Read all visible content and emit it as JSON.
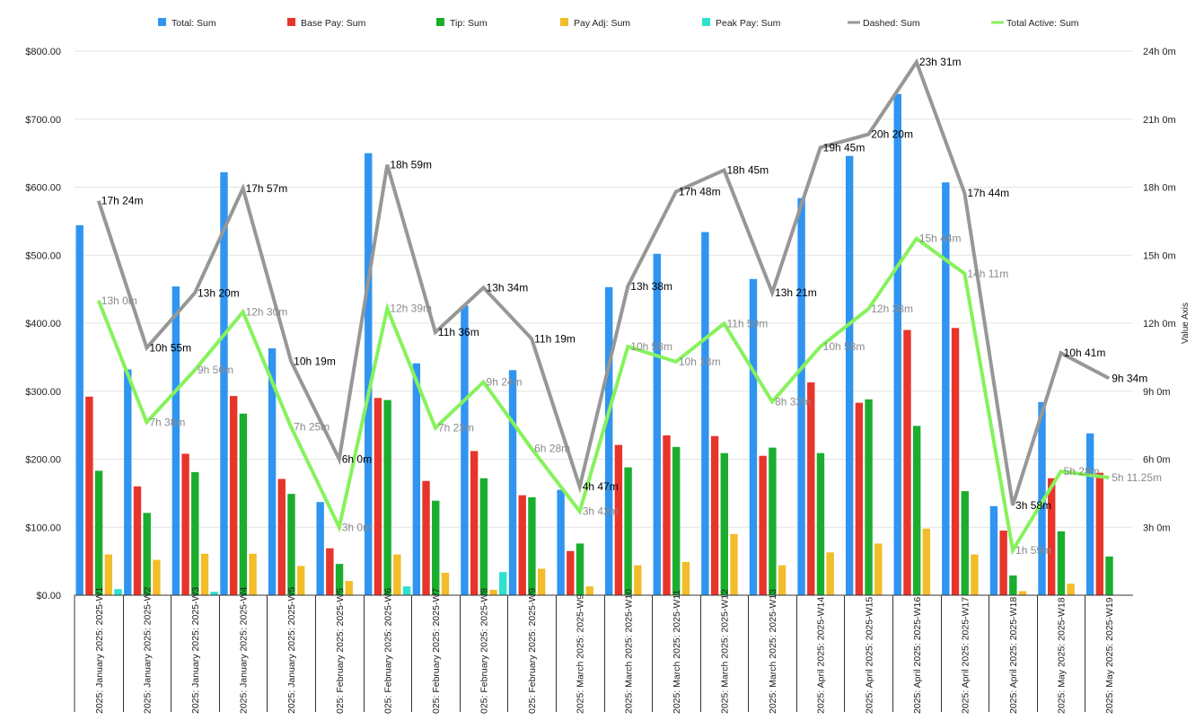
{
  "chart_data": {
    "type": "bar",
    "categories": [
      "2025: January 2025: 2025-W1",
      "2025: January 2025: 2025-W2",
      "2025: January 2025: 2025-W3",
      "2025: January 2025: 2025-W4",
      "2025: January 2025: 2025-W5",
      "025: February 2025: 2025-W5",
      "025: February 2025: 2025-W6",
      "025: February 2025: 2025-W7",
      "025: February 2025: 2025-W8",
      "025: February 2025: 2025-W9",
      "2025: March 2025: 2025-W9",
      "2025: March 2025: 2025-W10",
      "2025: March 2025: 2025-W11",
      "2025: March 2025: 2025-W12",
      "2025: March 2025: 2025-W13",
      "2025: April 2025: 2025-W14",
      "2025: April 2025: 2025-W15",
      "2025: April 2025: 2025-W16",
      "2025: April 2025: 2025-W17",
      "2025: April 2025: 2025-W18",
      "2025: May 2025: 2025-W18",
      "2025: May 2025: 2025-W19"
    ],
    "bar_series": [
      {
        "name": "Total: Sum",
        "color": "#2f95f0",
        "values": [
          544,
          332,
          454,
          622,
          363,
          137,
          650,
          341,
          426,
          331,
          155,
          453,
          502,
          534,
          465,
          584,
          646,
          737,
          607,
          131,
          284,
          238
        ]
      },
      {
        "name": "Base Pay: Sum",
        "color": "#e8352b",
        "values": [
          292,
          160,
          208,
          293,
          171,
          69,
          290,
          168,
          212,
          147,
          65,
          221,
          235,
          234,
          205,
          313,
          283,
          390,
          393,
          95,
          172,
          180
        ]
      },
      {
        "name": "Tip: Sum",
        "color": "#1aae2e",
        "values": [
          183,
          121,
          181,
          267,
          149,
          46,
          287,
          139,
          172,
          144,
          76,
          188,
          218,
          209,
          217,
          209,
          288,
          249,
          153,
          29,
          94,
          57
        ]
      },
      {
        "name": "Pay Adj: Sum",
        "color": "#f2bd2a",
        "values": [
          60,
          52,
          61,
          61,
          43,
          21,
          60,
          33,
          8,
          39,
          13,
          44,
          49,
          90,
          44,
          63,
          76,
          98,
          60,
          6,
          17,
          0
        ]
      },
      {
        "name": "Peak Pay: Sum",
        "color": "#2ee0d0",
        "values": [
          9,
          0,
          5,
          0,
          0,
          0,
          13,
          0,
          34,
          0,
          0,
          0,
          0,
          0,
          0,
          0,
          0,
          0,
          0,
          0,
          0,
          0
        ]
      }
    ],
    "line_series": [
      {
        "name": "Dashed: Sum",
        "color": "#979797",
        "values": [
          17.4,
          10.9167,
          13.3333,
          17.95,
          10.3167,
          6.0,
          18.9833,
          11.6,
          13.5667,
          11.3167,
          4.7833,
          13.6333,
          17.8,
          18.75,
          13.35,
          19.75,
          20.3333,
          23.5167,
          17.7333,
          3.9667,
          10.6833,
          9.5667
        ],
        "labels": [
          "17h 24m",
          "10h 55m",
          "13h 20m",
          "17h 57m",
          "10h 19m",
          "6h 0m",
          "18h 59m",
          "11h 36m",
          "13h 34m",
          "11h 19m",
          "4h 47m",
          "13h 38m",
          "17h 48m",
          "18h 45m",
          "13h 21m",
          "19h 45m",
          "20h 20m",
          "23h 31m",
          "17h 44m",
          "3h 58m",
          "10h 41m",
          "9h 34m"
        ]
      },
      {
        "name": "Total Active: Sum",
        "color": "#86f25c",
        "values": [
          13.0,
          7.6333,
          9.9333,
          12.5,
          7.4167,
          3.0,
          12.65,
          7.3833,
          9.4,
          6.4667,
          3.7,
          10.9667,
          10.3,
          11.9833,
          8.5333,
          10.9667,
          12.6333,
          15.7333,
          14.1833,
          1.9833,
          5.4667,
          5.1875
        ],
        "labels": [
          "13h 0m",
          "7h 38m",
          "9h 56m",
          "12h 30m",
          "7h 25m",
          "3h 0m",
          "12h 39m",
          "7h 23m",
          "9h 24m",
          "6h 28m",
          "3h 42m",
          "10h 58m",
          "10h 18m",
          "11h 59m",
          "8h 32m",
          "10h 58m",
          "12h 38m",
          "15h 44m",
          "14h 11m",
          "1h 59m",
          "5h 28m",
          "5h 11.25m"
        ]
      }
    ],
    "left_axis": {
      "ticks": [
        "$0.00",
        "$100.00",
        "$200.00",
        "$300.00",
        "$400.00",
        "$500.00",
        "$600.00",
        "$700.00",
        "$800.00"
      ],
      "ylim": [
        0,
        800
      ]
    },
    "right_axis": {
      "title": "Value Axis",
      "ticks": [
        "3h 0m",
        "6h 0m",
        "9h 0m",
        "12h 0m",
        "15h 0m",
        "18h 0m",
        "21h 0m",
        "24h 0m"
      ],
      "ylim": [
        0,
        24
      ]
    },
    "legend_position": "top",
    "grid": true
  }
}
